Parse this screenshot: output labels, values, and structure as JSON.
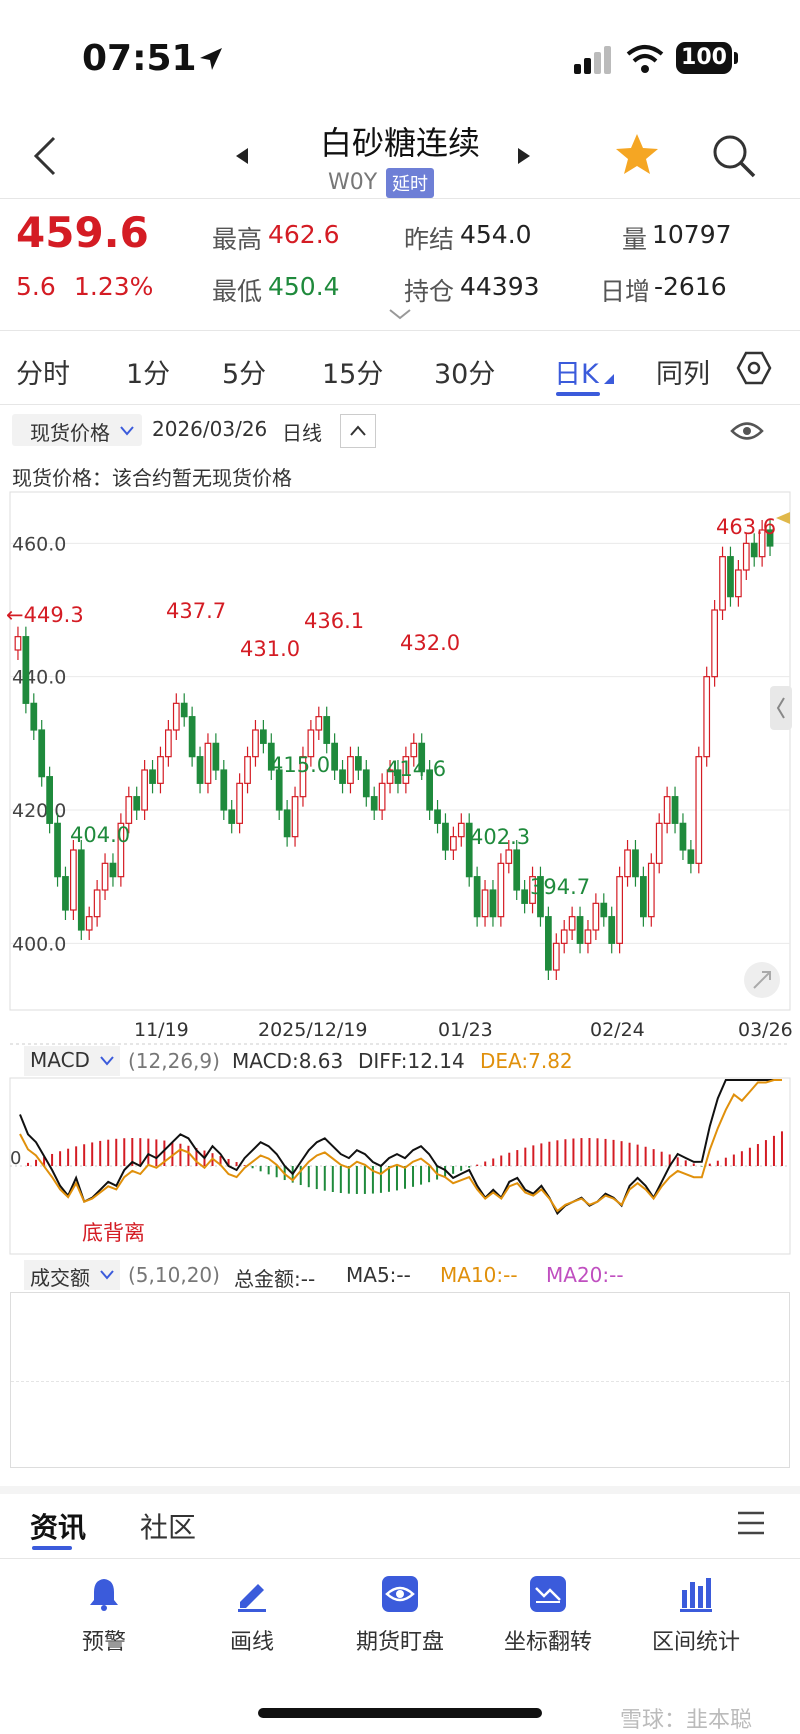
{
  "status": {
    "time": "07:51",
    "battery": "100"
  },
  "header": {
    "title": "白砂糖连续",
    "code": "W0Y",
    "badge": "延时"
  },
  "quote": {
    "price": "459.6",
    "change": "5.6",
    "change_pct": "1.23%",
    "high_label": "最高",
    "high": "462.6",
    "low_label": "最低",
    "low": "450.4",
    "prev_settle_label": "昨结",
    "prev_settle": "454.0",
    "open_interest_label": "持仓",
    "open_interest": "44393",
    "volume_label": "量",
    "volume": "10797",
    "daily_change_label": "日增",
    "daily_change": "-2616"
  },
  "tabs": [
    "分时",
    "1分",
    "5分",
    "15分",
    "30分",
    "日K",
    "同列"
  ],
  "chart_toolbar": {
    "selector": "现货价格",
    "date": "2026/03/26",
    "period": "日线",
    "spot_notice": "现货价格：该合约暂无现货价格"
  },
  "chart_data": {
    "type": "candlestick",
    "ylim": [
      390,
      468
    ],
    "yticks": [
      "460.0",
      "440.0",
      "420.0",
      "400.0"
    ],
    "xticks": [
      "11/19",
      "2025/12/19",
      "01/23",
      "02/24",
      "03/26"
    ],
    "current_price_marker": "←449.3",
    "annotations": [
      {
        "text": "463.6",
        "color": "red"
      },
      {
        "text": "437.7",
        "color": "red"
      },
      {
        "text": "431.0",
        "color": "red"
      },
      {
        "text": "436.1",
        "color": "red"
      },
      {
        "text": "432.0",
        "color": "red"
      },
      {
        "text": "404.0",
        "color": "green"
      },
      {
        "text": "415.0",
        "color": "green"
      },
      {
        "text": "414.6",
        "color": "green"
      },
      {
        "text": "402.3",
        "color": "green"
      },
      {
        "text": "394.7",
        "color": "green"
      }
    ],
    "closes": [
      446,
      436,
      432,
      425,
      418,
      410,
      405,
      414,
      402,
      404,
      408,
      412,
      410,
      418,
      422,
      420,
      426,
      424,
      428,
      432,
      436,
      434,
      428,
      424,
      430,
      426,
      420,
      418,
      424,
      428,
      432,
      430,
      426,
      420,
      416,
      422,
      428,
      432,
      434,
      430,
      426,
      424,
      428,
      426,
      422,
      420,
      424,
      426,
      424,
      428,
      430,
      426,
      420,
      418,
      414,
      416,
      418,
      410,
      404,
      408,
      404,
      412,
      414,
      408,
      406,
      410,
      404,
      396,
      400,
      402,
      404,
      400,
      402,
      406,
      404,
      400,
      410,
      414,
      410,
      404,
      412,
      418,
      422,
      418,
      414,
      412,
      428,
      440,
      450,
      458,
      452,
      456,
      460,
      458,
      462,
      459.6
    ]
  },
  "macd": {
    "name": "MACD",
    "params": "(12,26,9)",
    "macd": "MACD:8.63",
    "diff": "DIFF:12.14",
    "dea": "DEA:7.82",
    "zero": "0",
    "annotation": "底背离"
  },
  "volume_panel": {
    "name": "成交额",
    "params": "(5,10,20)",
    "total": "总金额:--",
    "ma5": "MA5:--",
    "ma10": "MA10:--",
    "ma20": "MA20:--"
  },
  "bottom_tabs": [
    "资讯",
    "社区"
  ],
  "nav": [
    {
      "label": "预警",
      "icon": "bell-icon"
    },
    {
      "label": "画线",
      "icon": "pen-icon"
    },
    {
      "label": "期货盯盘",
      "icon": "eye-icon"
    },
    {
      "label": "坐标翻转",
      "icon": "flip-icon"
    },
    {
      "label": "区间统计",
      "icon": "stats-icon"
    }
  ],
  "watermark": "雪球：韭本聪"
}
